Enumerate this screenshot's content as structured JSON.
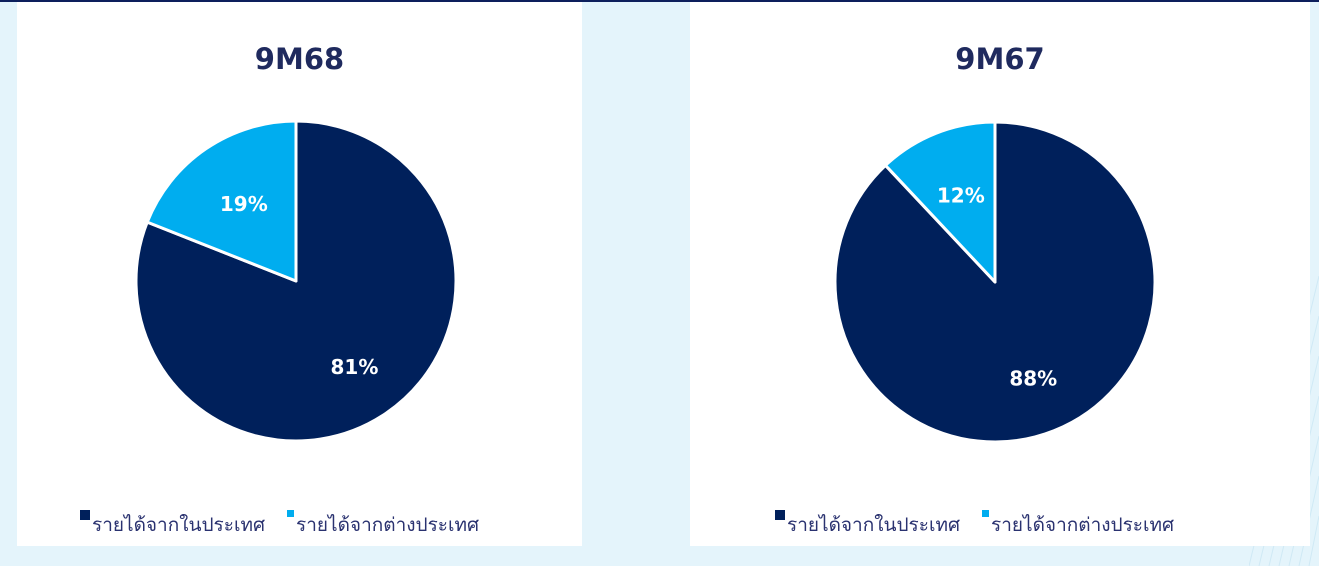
{
  "colors": {
    "background": "#e4f4fb",
    "panel": "#ffffff",
    "domestic": "#00205b",
    "international": "#00adef",
    "title": "#1f2a5e",
    "legend_text": "#2a3270"
  },
  "chart_data": [
    {
      "type": "pie",
      "title": "9M68",
      "categories": [
        "รายได้จากในประเทศ",
        "รายได้จากต่างประเทศ"
      ],
      "values": [
        81,
        19
      ],
      "labels": [
        "81%",
        "19%"
      ],
      "legend_position": "bottom"
    },
    {
      "type": "pie",
      "title": "9M67",
      "categories": [
        "รายได้จากในประเทศ",
        "รายได้จากต่างประเทศ"
      ],
      "values": [
        88,
        12
      ],
      "labels": [
        "88%",
        "12%"
      ],
      "legend_position": "bottom"
    }
  ]
}
